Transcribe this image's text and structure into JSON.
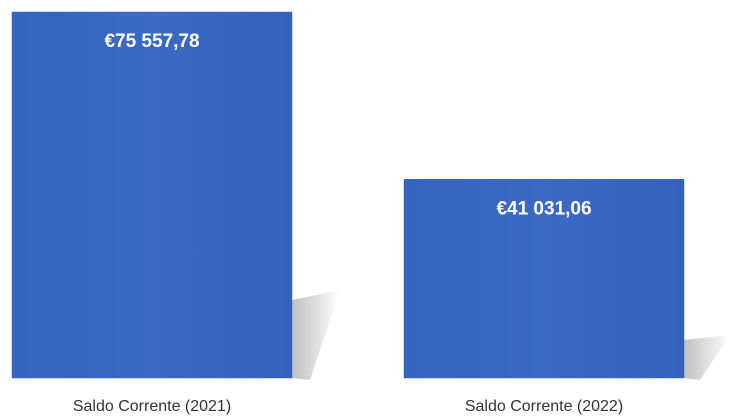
{
  "chart_data": {
    "type": "bar",
    "categories": [
      "Saldo Corrente (2021)",
      "Saldo Corrente (2022)"
    ],
    "values": [
      75557.78,
      41031.06
    ],
    "value_labels": [
      "€75 557,78",
      "€41 031,06"
    ],
    "color": "#3a66c0"
  }
}
